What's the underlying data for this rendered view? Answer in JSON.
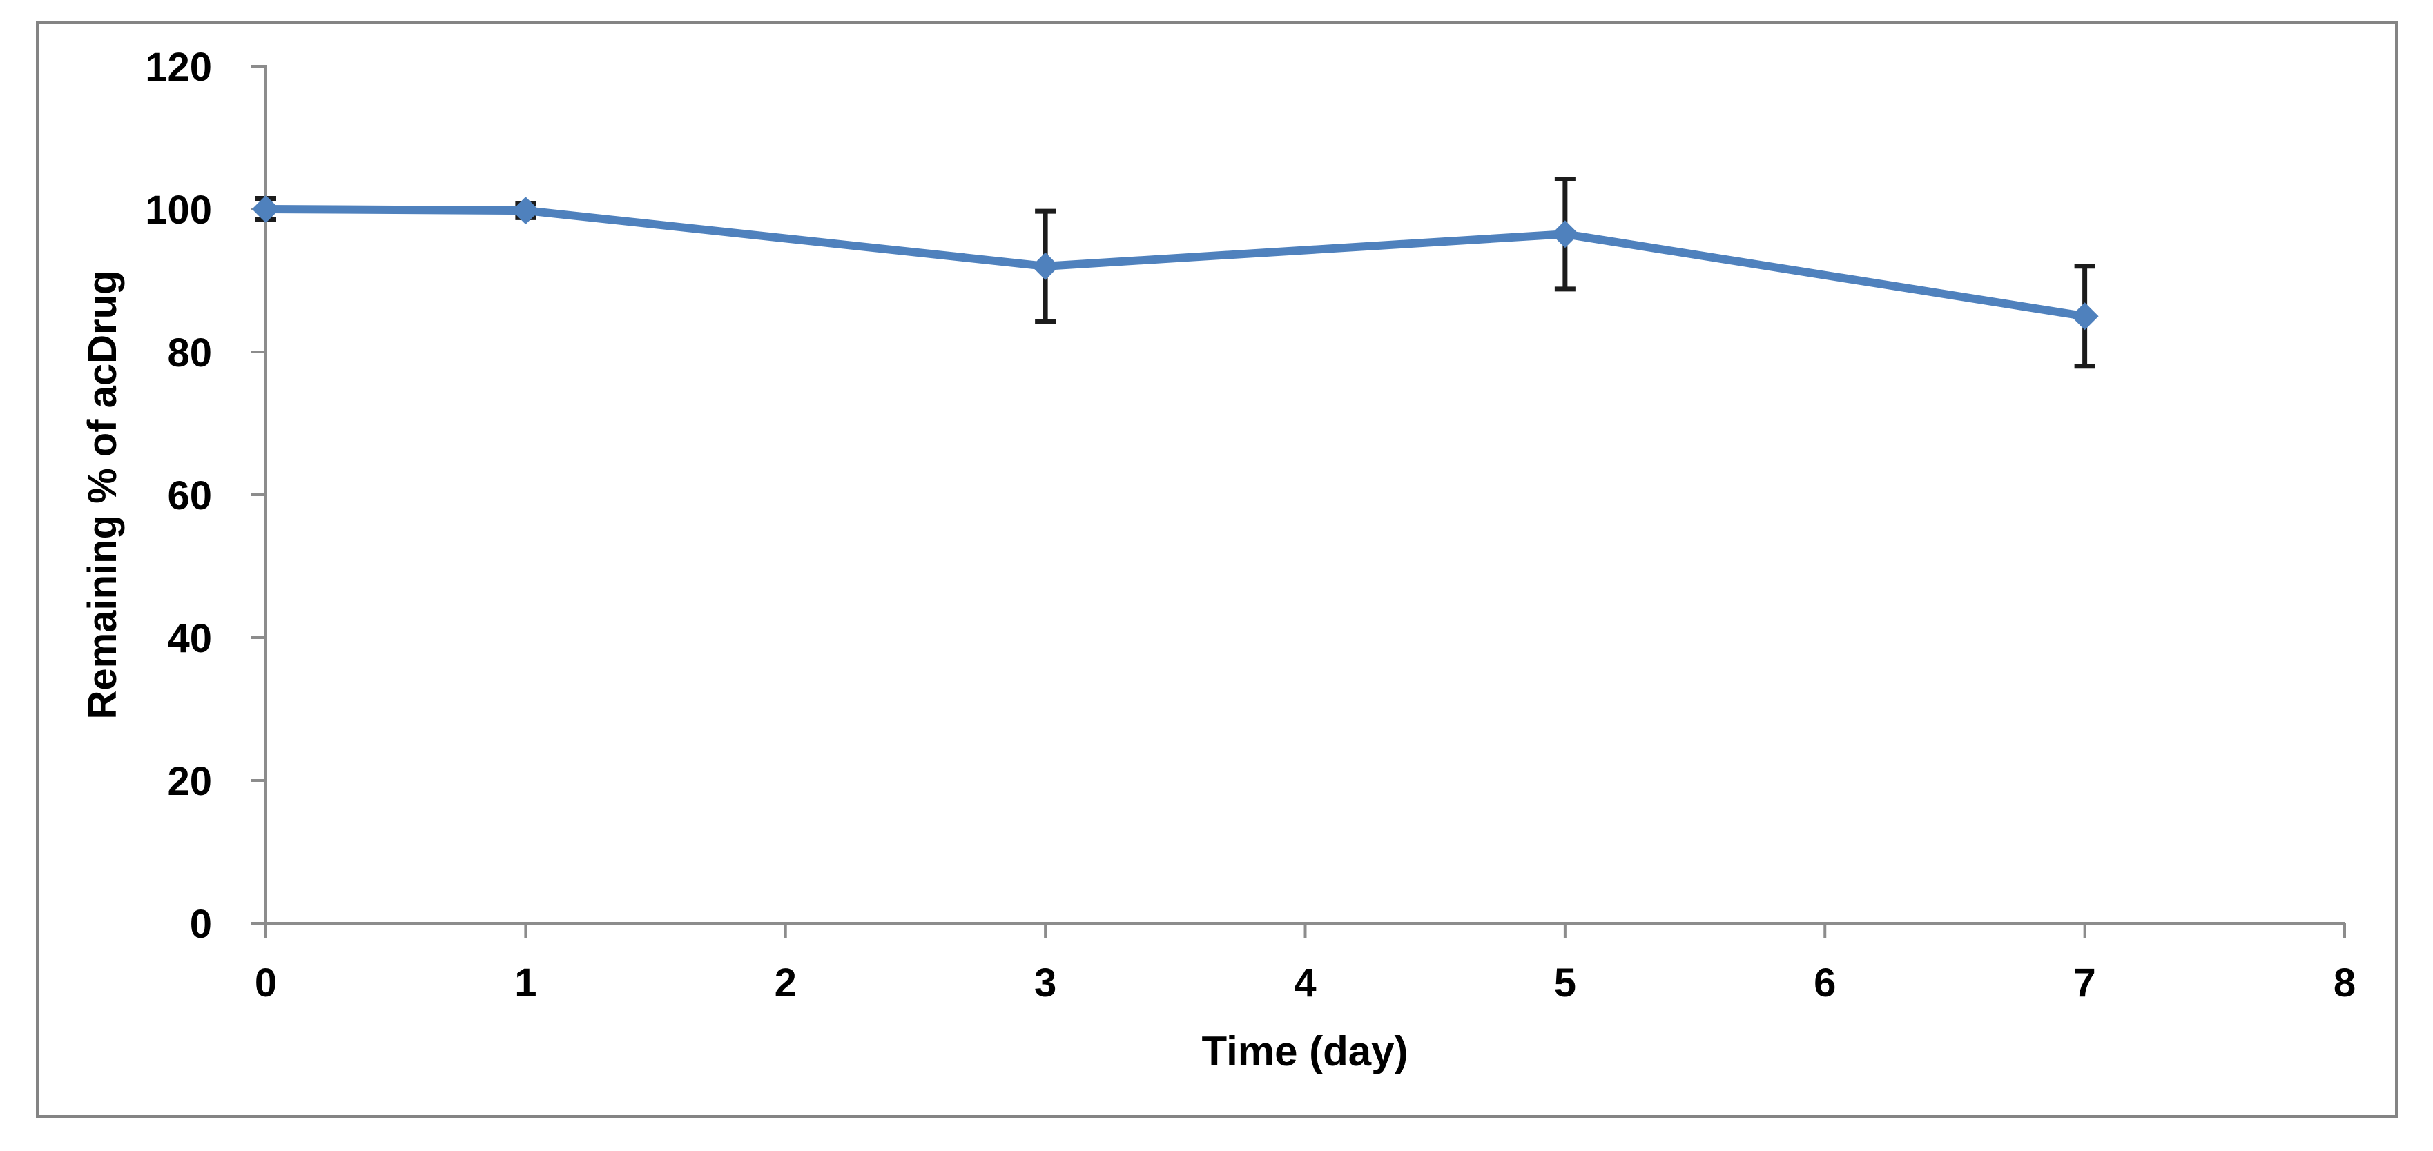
{
  "chart_data": {
    "type": "line",
    "title": "",
    "xlabel": "Time (day)",
    "ylabel": "Remaining % of acDrug",
    "x": [
      0,
      1,
      3,
      5,
      7
    ],
    "series": [
      {
        "values": [
          100,
          99.8,
          92,
          96.5,
          85
        ],
        "error_plus": [
          1.5,
          1,
          7.7,
          7.7,
          7
        ],
        "error_minus": [
          1.5,
          1,
          7.7,
          7.7,
          7
        ],
        "color": "#4F81BD",
        "marker": "diamond"
      }
    ],
    "xlim": [
      0,
      8
    ],
    "ylim": [
      0,
      120
    ],
    "x_ticks": [
      0,
      1,
      2,
      3,
      4,
      5,
      6,
      7,
      8
    ],
    "y_ticks": [
      0,
      20,
      40,
      60,
      80,
      100,
      120
    ],
    "grid": false,
    "legend_position": "none",
    "error_bar_color": "#1C1C1C",
    "axis_color": "#8C8C8C",
    "tick_label_color": "#000000",
    "frame_color": "#848484",
    "background": "#FFFFFF"
  }
}
